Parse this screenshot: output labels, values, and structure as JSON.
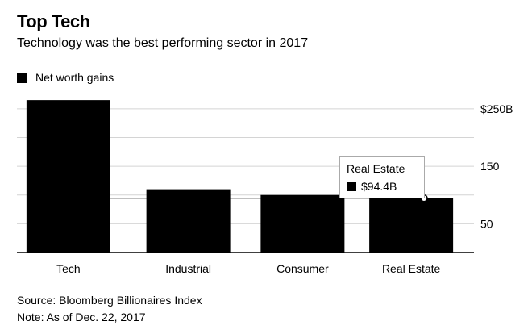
{
  "colors": {
    "bar": "#000000",
    "grid": "#d4d4d4",
    "axis": "#000000",
    "background": "#ffffff"
  },
  "chart_data": {
    "type": "bar",
    "title": "Top Tech",
    "subtitle": "Technology was the best performing sector in 2017",
    "legend": [
      "Net worth gains"
    ],
    "categories": [
      "Tech",
      "Industrial",
      "Consumer",
      "Real Estate"
    ],
    "series": [
      {
        "name": "Net worth gains",
        "values": [
          265,
          110,
          100,
          94.4
        ]
      }
    ],
    "ylim": [
      0,
      275
    ],
    "yticks": [
      50,
      150,
      250
    ],
    "ytick_labels": [
      "50",
      "150",
      "$250B"
    ],
    "xlabel": "",
    "ylabel": "",
    "grid": true,
    "reference_value": 94.4,
    "tooltip": {
      "category": "Real Estate",
      "value_label": "$94.4B"
    },
    "source": "Source: Bloomberg Billionaires Index",
    "note": "Note: As of Dec. 22, 2017"
  }
}
